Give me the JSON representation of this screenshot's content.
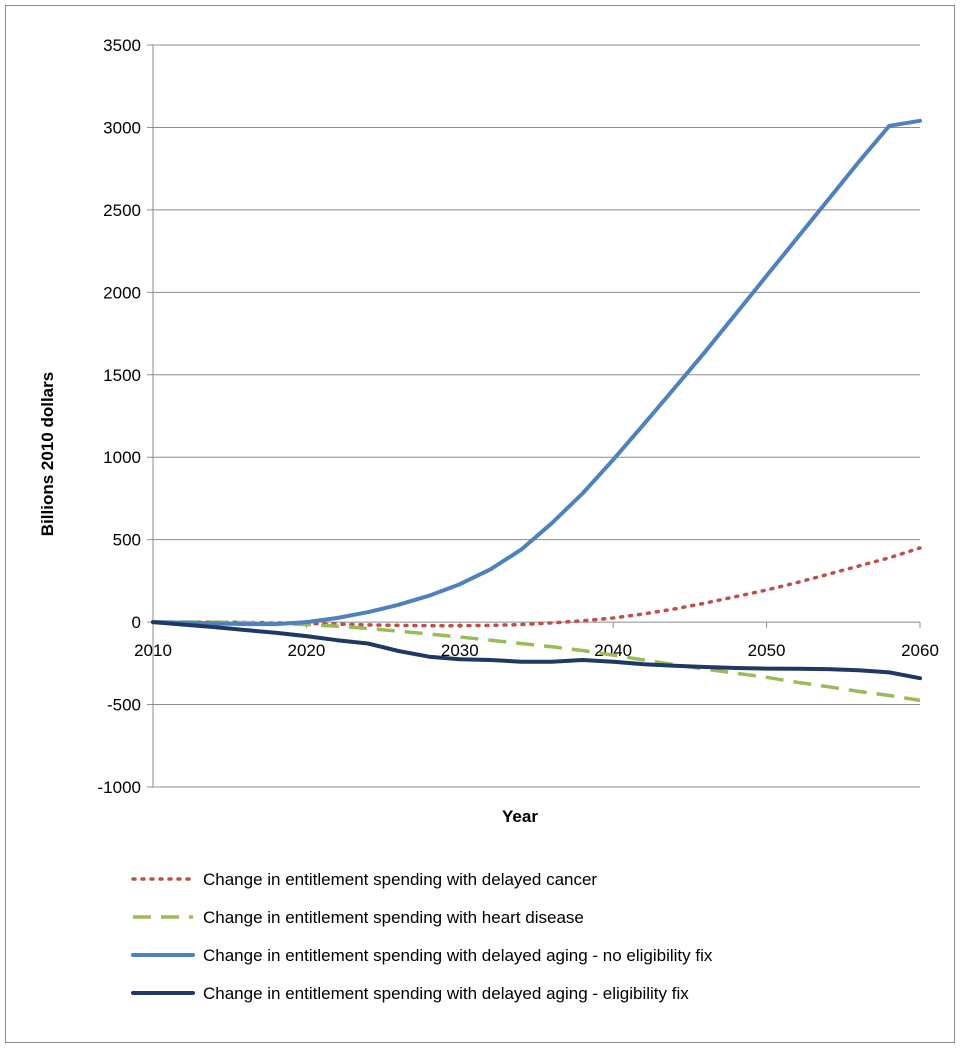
{
  "chart_data": {
    "type": "line",
    "title": "",
    "xlabel": "Year",
    "ylabel": "Billions 2010 dollars",
    "xlim": [
      2010,
      2060
    ],
    "ylim": [
      -1000,
      3500
    ],
    "xticks": [
      2010,
      2020,
      2030,
      2040,
      2050,
      2060
    ],
    "yticks": [
      3500,
      3000,
      2500,
      2000,
      1500,
      1000,
      500,
      0,
      -500,
      -1000
    ],
    "grid": "horizontal",
    "legend_position": "bottom",
    "x": [
      2010,
      2012,
      2014,
      2016,
      2018,
      2020,
      2022,
      2024,
      2026,
      2028,
      2030,
      2032,
      2034,
      2036,
      2038,
      2040,
      2042,
      2044,
      2046,
      2048,
      2050,
      2052,
      2054,
      2056,
      2058,
      2060
    ],
    "series": [
      {
        "name": "Change in entitlement spending with delayed cancer",
        "color": "#c0504d",
        "style": "dotted",
        "values": [
          0,
          0,
          0,
          -2,
          -4,
          -8,
          -12,
          -17,
          -20,
          -22,
          -22,
          -20,
          -15,
          -5,
          8,
          25,
          50,
          80,
          115,
          155,
          195,
          240,
          290,
          340,
          390,
          450
        ]
      },
      {
        "name": "Change in entitlement spending with heart disease",
        "color": "#9bbb59",
        "style": "dashed",
        "values": [
          0,
          0,
          0,
          -3,
          -7,
          -15,
          -25,
          -38,
          -55,
          -72,
          -90,
          -110,
          -130,
          -150,
          -172,
          -200,
          -230,
          -258,
          -285,
          -310,
          -335,
          -365,
          -392,
          -420,
          -445,
          -475
        ]
      },
      {
        "name": "Change in entitlement spending with  delayed aging - no eligibility fix",
        "color": "#4f81bd",
        "style": "solid",
        "values": [
          0,
          -3,
          -8,
          -12,
          -12,
          0,
          25,
          60,
          105,
          160,
          230,
          320,
          440,
          600,
          780,
          985,
          1200,
          1420,
          1640,
          1870,
          2100,
          2330,
          2560,
          2790,
          3010,
          3040
        ]
      },
      {
        "name": "Change in entitlement spending with delayed aging - eligibility fix",
        "color": "#1f3864",
        "style": "solid",
        "values": [
          0,
          -15,
          -30,
          -48,
          -65,
          -85,
          -110,
          -130,
          -175,
          -210,
          -225,
          -230,
          -240,
          -240,
          -230,
          -240,
          -255,
          -265,
          -272,
          -278,
          -282,
          -283,
          -285,
          -292,
          -305,
          -340
        ]
      }
    ]
  }
}
